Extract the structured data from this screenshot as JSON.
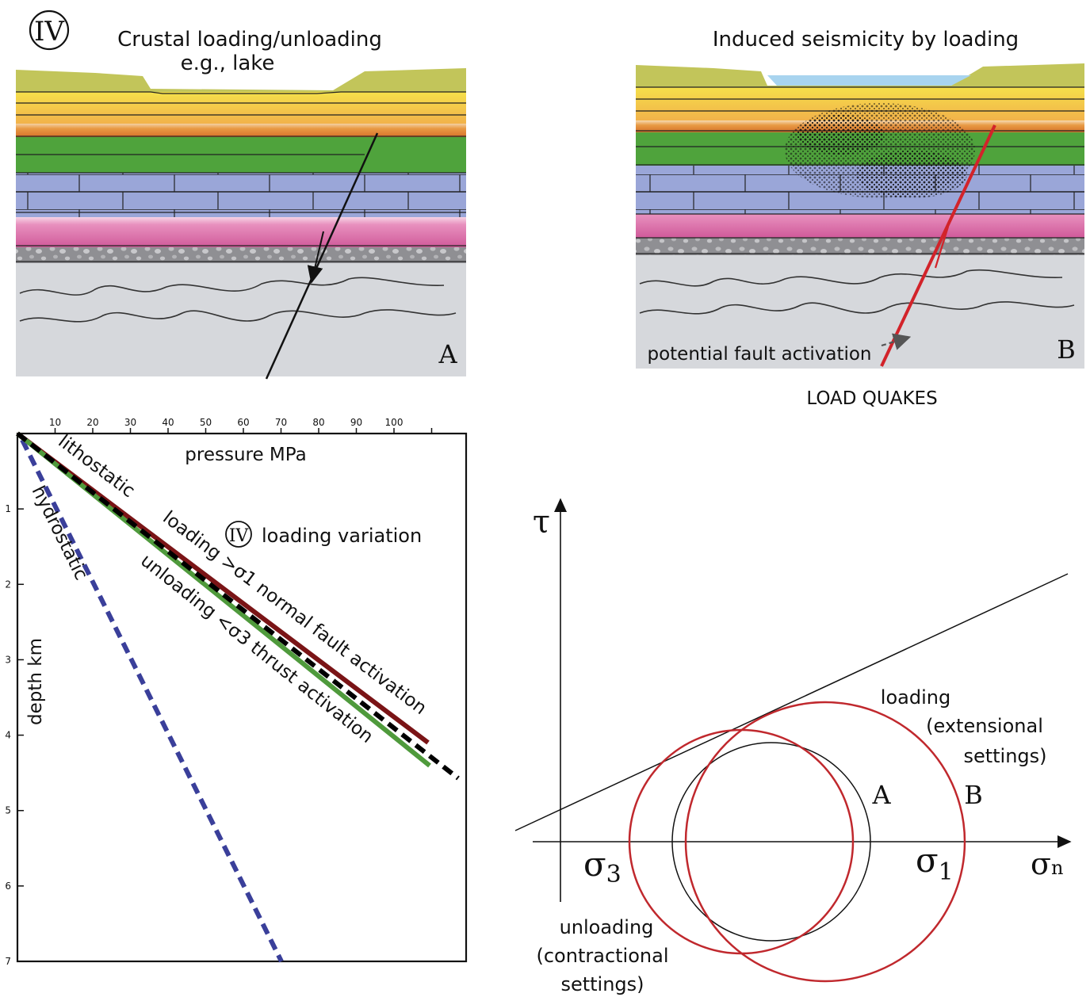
{
  "panel_a": {
    "numeral": "IV",
    "title_line1": "Crustal loading/unloading",
    "title_line2": "e.g., lake",
    "letter": "A"
  },
  "panel_b": {
    "title": "Induced seismicity by loading",
    "letter": "B",
    "fault_label": "potential fault activation",
    "caption": "LOAD QUAKES"
  },
  "pressure_chart": {
    "x_ticks": [
      "10",
      "20",
      "30",
      "40",
      "50",
      "60",
      "70",
      "80",
      "90",
      "100"
    ],
    "x_label": "pressure MPa",
    "y_ticks": [
      "1",
      "2",
      "3",
      "4",
      "5",
      "6",
      "7"
    ],
    "y_label": "depth km",
    "line_labels": {
      "lithostatic": "lithostatic",
      "hydrostatic": "hydrostatic",
      "loading": "loading >σ1 normal fault activation",
      "unloading": "unloading <σ3 thrust activation"
    },
    "annotation_numeral": "IV",
    "annotation_text": "loading variation",
    "colors": {
      "lithostatic": "#7a1416",
      "unloading": "#4f9a3c",
      "hydrostatic": "#3a3f9a",
      "dashed_reference": "#000000"
    }
  },
  "mohr": {
    "tau": "τ",
    "sigma_n": "σ",
    "sigma_n_sub": "n",
    "sigma3": "σ",
    "sigma3_sub": "3",
    "sigma1": "σ",
    "sigma1_sub": "1",
    "label_a": "A",
    "label_b": "B",
    "loading_line1": "loading",
    "loading_line2": "(extensional",
    "loading_line3": "settings)",
    "unloading_line1": "unloading",
    "unloading_line2": "(contractional",
    "unloading_line3": "settings)",
    "circle_color": "#c0282d"
  }
}
